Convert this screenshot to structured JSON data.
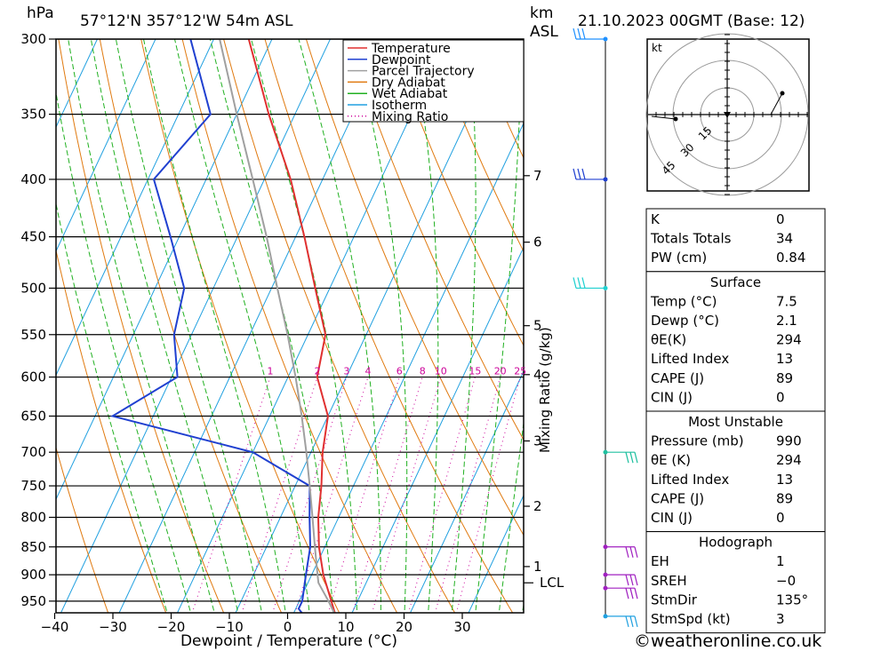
{
  "header": {
    "location": "57°12'N  357°12'W  54m  ASL",
    "datetime": "21.10.2023  00GMT  (Base: 12)",
    "left_unit": "hPa",
    "km_label": "km",
    "asl_label": "ASL"
  },
  "chart_data": {
    "type": "skew-t",
    "xlabel": "Dewpoint / Temperature (°C)",
    "ylabel_left": "hPa",
    "ylabel_right": "Mixing Ratio (g/kg)",
    "x_ticks": [
      "-40",
      "-30",
      "-20",
      "-10",
      "0",
      "10",
      "20",
      "30"
    ],
    "x_tick_values": [
      -40,
      -30,
      -20,
      -10,
      0,
      10,
      20,
      30
    ],
    "pressure_levels": [
      300,
      350,
      400,
      450,
      500,
      550,
      600,
      650,
      700,
      750,
      800,
      850,
      900,
      950
    ],
    "pressure_labels": [
      "300",
      "350",
      "400",
      "450",
      "500",
      "550",
      "600",
      "650",
      "700",
      "750",
      "800",
      "850",
      "900",
      "950"
    ],
    "km_ticks": [
      {
        "label": "7",
        "p": 397
      },
      {
        "label": "6",
        "p": 455
      },
      {
        "label": "5",
        "p": 540
      },
      {
        "label": "4",
        "p": 597
      },
      {
        "label": "3",
        "p": 684
      },
      {
        "label": "2",
        "p": 782
      },
      {
        "label": "1",
        "p": 885
      }
    ],
    "lcl": {
      "label": "LCL",
      "p": 915
    },
    "mixing_ratio_labels": [
      "1",
      "2",
      "3",
      "4",
      "6",
      "8",
      "10",
      "15",
      "20",
      "25"
    ],
    "mixing_ratio_values": [
      1,
      2,
      3,
      4,
      6,
      8,
      10,
      15,
      20,
      25
    ],
    "legend": [
      {
        "name": "Temperature",
        "color": "#e03030",
        "style": "solid"
      },
      {
        "name": "Dewpoint",
        "color": "#2040d0",
        "style": "solid"
      },
      {
        "name": "Parcel Trajectory",
        "color": "#a0a0a0",
        "style": "solid"
      },
      {
        "name": "Dry Adiabat",
        "color": "#e07a10",
        "style": "solid"
      },
      {
        "name": "Wet Adiabat",
        "color": "#20b020",
        "style": "solid"
      },
      {
        "name": "Isotherm",
        "color": "#20a0e0",
        "style": "solid"
      },
      {
        "name": "Mixing Ratio",
        "color": "#cc0099",
        "style": "dotted"
      }
    ],
    "series": [
      {
        "name": "Temperature",
        "points": [
          {
            "p": 980,
            "t": 7.5
          },
          {
            "p": 950,
            "t": 5.5
          },
          {
            "p": 900,
            "t": 2.0
          },
          {
            "p": 850,
            "t": -1.0
          },
          {
            "p": 800,
            "t": -3.5
          },
          {
            "p": 750,
            "t": -5.5
          },
          {
            "p": 700,
            "t": -8.0
          },
          {
            "p": 650,
            "t": -10.0
          },
          {
            "p": 600,
            "t": -15.0
          },
          {
            "p": 550,
            "t": -17.0
          },
          {
            "p": 500,
            "t": -22.5
          },
          {
            "p": 450,
            "t": -28.5
          },
          {
            "p": 400,
            "t": -35.5
          },
          {
            "p": 350,
            "t": -44.5
          },
          {
            "p": 300,
            "t": -54.0
          }
        ]
      },
      {
        "name": "Dewpoint",
        "points": [
          {
            "p": 980,
            "t": 2.1
          },
          {
            "p": 965,
            "t": 0.5
          },
          {
            "p": 950,
            "t": 0.5
          },
          {
            "p": 900,
            "t": -1.0
          },
          {
            "p": 850,
            "t": -2.5
          },
          {
            "p": 800,
            "t": -5.0
          },
          {
            "p": 750,
            "t": -7.5
          },
          {
            "p": 700,
            "t": -20.0
          },
          {
            "p": 650,
            "t": -47.0
          },
          {
            "p": 600,
            "t": -39.0
          },
          {
            "p": 550,
            "t": -43.0
          },
          {
            "p": 500,
            "t": -45.0
          },
          {
            "p": 450,
            "t": -51.5
          },
          {
            "p": 400,
            "t": -59.0
          },
          {
            "p": 350,
            "t": -54.5
          },
          {
            "p": 300,
            "t": -64.0
          }
        ]
      },
      {
        "name": "Parcel Trajectory",
        "points": [
          {
            "p": 980,
            "t": 7.5
          },
          {
            "p": 950,
            "t": 5.0
          },
          {
            "p": 915,
            "t": 1.8
          },
          {
            "p": 900,
            "t": 1.0
          },
          {
            "p": 850,
            "t": -1.7
          },
          {
            "p": 800,
            "t": -4.5
          },
          {
            "p": 750,
            "t": -7.5
          },
          {
            "p": 700,
            "t": -10.8
          },
          {
            "p": 650,
            "t": -14.5
          },
          {
            "p": 600,
            "t": -18.7
          },
          {
            "p": 550,
            "t": -23.5
          },
          {
            "p": 500,
            "t": -29.0
          },
          {
            "p": 450,
            "t": -35.0
          },
          {
            "p": 400,
            "t": -42.0
          },
          {
            "p": 350,
            "t": -50.0
          },
          {
            "p": 300,
            "t": -59.0
          }
        ]
      }
    ],
    "xlim": [
      -40,
      40
    ],
    "ylim": [
      980,
      300
    ],
    "grid": true
  },
  "wind_barbs": [
    {
      "p": 300,
      "color": "#1e90ff"
    },
    {
      "p": 400,
      "color": "#2040d0"
    },
    {
      "p": 500,
      "color": "#20d0d0"
    },
    {
      "p": 700,
      "color": "#20c0a0"
    },
    {
      "p": 850,
      "color": "#a020c0"
    },
    {
      "p": 900,
      "color": "#a020c0"
    },
    {
      "p": 925,
      "color": "#a020c0"
    },
    {
      "p": 980,
      "color": "#20a0e0"
    }
  ],
  "hodograph": {
    "unit": "kt",
    "ring_labels": [
      "15",
      "30",
      "45"
    ]
  },
  "indices": {
    "rows": [
      {
        "label": "K",
        "value": "0"
      },
      {
        "label": "Totals Totals",
        "value": "34"
      },
      {
        "label": "PW (cm)",
        "value": "0.84"
      }
    ]
  },
  "surface": {
    "title": "Surface",
    "rows": [
      {
        "label": "Temp (°C)",
        "value": "7.5"
      },
      {
        "label": "Dewp (°C)",
        "value": "2.1"
      },
      {
        "label": "θE(K)",
        "value": "294"
      },
      {
        "label": "Lifted Index",
        "value": "13"
      },
      {
        "label": "CAPE (J)",
        "value": "89"
      },
      {
        "label": "CIN (J)",
        "value": "0"
      }
    ]
  },
  "most_unstable": {
    "title": "Most Unstable",
    "rows": [
      {
        "label": "Pressure (mb)",
        "value": "990"
      },
      {
        "label": "θE (K)",
        "value": "294"
      },
      {
        "label": "Lifted Index",
        "value": "13"
      },
      {
        "label": "CAPE (J)",
        "value": "89"
      },
      {
        "label": "CIN (J)",
        "value": "0"
      }
    ]
  },
  "hodograph_table": {
    "title": "Hodograph",
    "rows": [
      {
        "label": "EH",
        "value": "1"
      },
      {
        "label": "SREH",
        "value": "-0"
      },
      {
        "label": "StmDir",
        "value": "135°"
      },
      {
        "label": "StmSpd (kt)",
        "value": "3"
      }
    ]
  },
  "footer": {
    "copyright": "©weatheronline.co.uk"
  }
}
